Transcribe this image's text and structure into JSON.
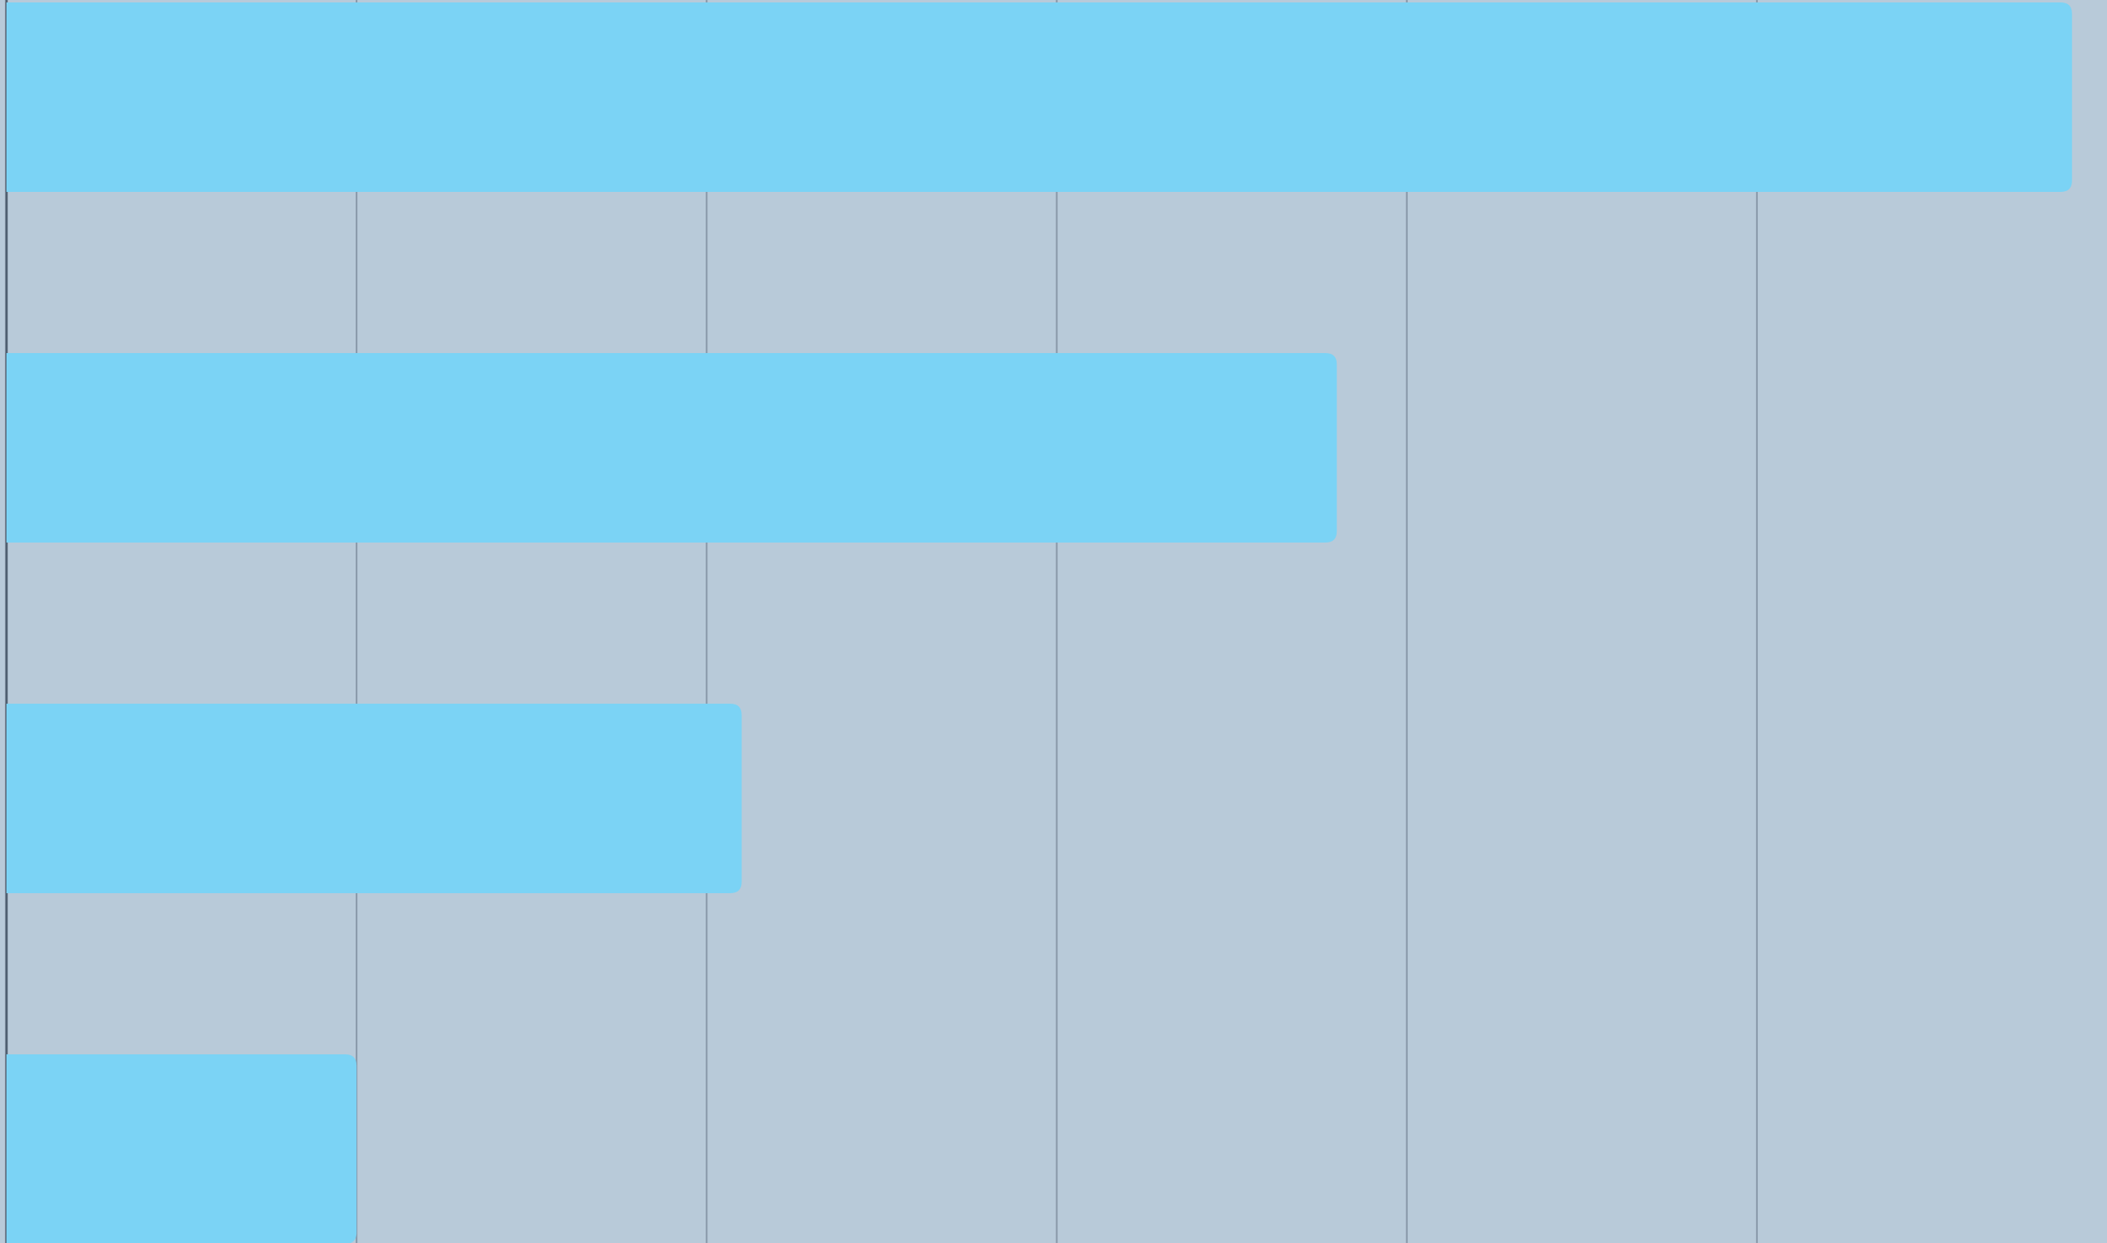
{
  "chart_data": {
    "type": "barh",
    "categories": [
      null,
      null,
      null,
      null
    ],
    "values": [
      5.9,
      3.8,
      2.1,
      1.0
    ],
    "color": "#7bd3f5",
    "xlim": [
      0,
      6
    ],
    "xticks": [
      0,
      1,
      2,
      3,
      4,
      5
    ],
    "grid": true
  }
}
